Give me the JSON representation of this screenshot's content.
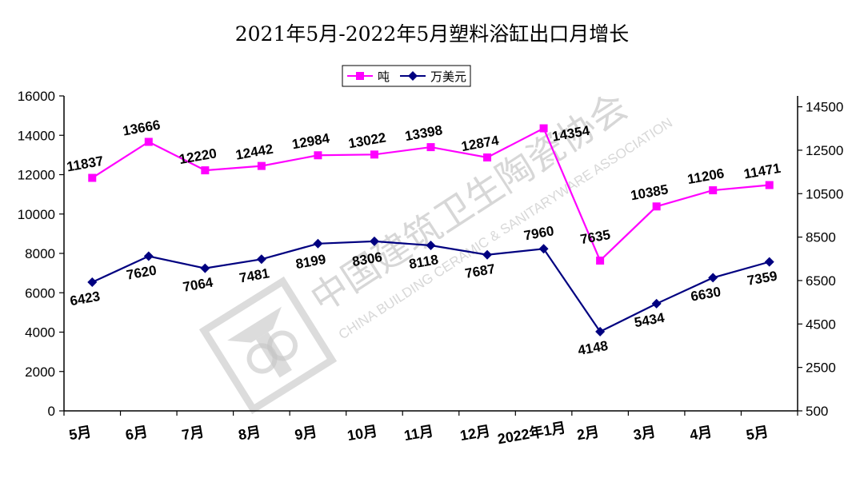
{
  "chart_data": {
    "type": "line",
    "title": "2021年5月-2022年5月塑料浴缸出口月增长",
    "categories": [
      "5月",
      "6月",
      "7月",
      "8月",
      "9月",
      "10月",
      "11月",
      "12月",
      "2022年1月",
      "2月",
      "3月",
      "4月",
      "5月"
    ],
    "series": [
      {
        "name": "吨",
        "axis": "left",
        "color": "#ff00ff",
        "marker": "square",
        "values": [
          11837,
          13666,
          12220,
          12442,
          12984,
          13022,
          13398,
          12874,
          14354,
          7635,
          10385,
          11206,
          11471
        ]
      },
      {
        "name": "万美元",
        "axis": "right",
        "color": "#000080",
        "marker": "diamond",
        "values": [
          6423,
          7620,
          7064,
          7481,
          8199,
          8306,
          8118,
          7687,
          7960,
          4148,
          5434,
          6630,
          7359
        ]
      }
    ],
    "y_left": {
      "min": 0,
      "max": 16000,
      "ticks": [
        "0",
        "2000",
        "4000",
        "6000",
        "8000",
        "10000",
        "12000",
        "14000",
        "16000"
      ]
    },
    "y_right": {
      "min": 500,
      "max": 15000,
      "ticks": [
        "500",
        "2500",
        "4500",
        "6500",
        "8500",
        "10500",
        "12500",
        "14500"
      ]
    },
    "grid": false,
    "legend_position": "top-center"
  },
  "watermark": {
    "chinese": "中国建筑卫生陶瓷协会",
    "english": "CHINA BUILDING CERAMIC & SANITARYWARE ASSOCIATION"
  }
}
